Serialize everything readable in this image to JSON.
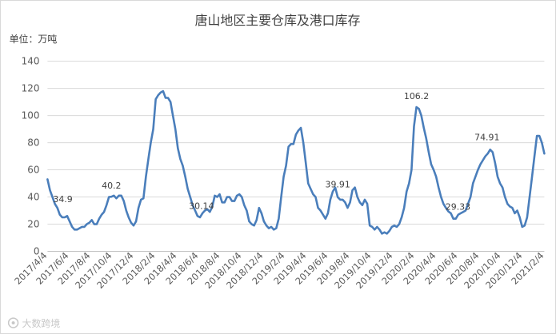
{
  "chart_data": {
    "type": "line",
    "title": "唐山地区主要仓库及港口库存",
    "ylabel": "单位：万吨",
    "ylim": [
      0,
      140
    ],
    "yticks": [
      0,
      20,
      40,
      60,
      80,
      100,
      120,
      140
    ],
    "grid": true,
    "legend": "none",
    "x_start": "2017/4/4",
    "x_end": "2021/2/4",
    "x_tick_labels": [
      "2017/4/4",
      "2017/6/4",
      "2017/8/4",
      "2017/10/4",
      "2017/12/4",
      "2018/2/4",
      "2018/4/4",
      "2018/6/4",
      "2018/8/4",
      "2018/10/4",
      "2018/12/4",
      "2019/2/4",
      "2019/4/4",
      "2019/6/4",
      "2019/8/4",
      "2019/10/4",
      "2019/12/4",
      "2020/2/4",
      "2020/4/4",
      "2020/6/4",
      "2020/8/4",
      "2020/10/4",
      "2020/12/4",
      "2021/2/4"
    ],
    "series": [
      {
        "color": "#4a7ebb",
        "points": [
          [
            "2017-04-04",
            53
          ],
          [
            "2017-04-11",
            45
          ],
          [
            "2017-04-18",
            40
          ],
          [
            "2017-04-25",
            34.9
          ],
          [
            "2017-05-02",
            32
          ],
          [
            "2017-05-09",
            27
          ],
          [
            "2017-05-16",
            25
          ],
          [
            "2017-05-23",
            25
          ],
          [
            "2017-05-30",
            26
          ],
          [
            "2017-06-06",
            22
          ],
          [
            "2017-06-13",
            18
          ],
          [
            "2017-06-20",
            16
          ],
          [
            "2017-06-27",
            16
          ],
          [
            "2017-07-04",
            17
          ],
          [
            "2017-07-11",
            18
          ],
          [
            "2017-07-18",
            18
          ],
          [
            "2017-07-25",
            20
          ],
          [
            "2017-08-01",
            21
          ],
          [
            "2017-08-08",
            23
          ],
          [
            "2017-08-15",
            20
          ],
          [
            "2017-08-22",
            20
          ],
          [
            "2017-08-29",
            24
          ],
          [
            "2017-09-05",
            27
          ],
          [
            "2017-09-12",
            29
          ],
          [
            "2017-09-19",
            34
          ],
          [
            "2017-09-26",
            40
          ],
          [
            "2017-10-03",
            40.2
          ],
          [
            "2017-10-10",
            41
          ],
          [
            "2017-10-17",
            39
          ],
          [
            "2017-10-24",
            41
          ],
          [
            "2017-10-31",
            41
          ],
          [
            "2017-11-07",
            37
          ],
          [
            "2017-11-14",
            30
          ],
          [
            "2017-11-21",
            25
          ],
          [
            "2017-11-28",
            21
          ],
          [
            "2017-12-05",
            19
          ],
          [
            "2017-12-12",
            22
          ],
          [
            "2017-12-19",
            32
          ],
          [
            "2017-12-26",
            38
          ],
          [
            "2018-01-02",
            39
          ],
          [
            "2018-01-09",
            55
          ],
          [
            "2018-01-16",
            68
          ],
          [
            "2018-01-23",
            80
          ],
          [
            "2018-01-30",
            90
          ],
          [
            "2018-02-06",
            112
          ],
          [
            "2018-02-13",
            115
          ],
          [
            "2018-02-20",
            117
          ],
          [
            "2018-02-27",
            118
          ],
          [
            "2018-03-06",
            113
          ],
          [
            "2018-03-13",
            113
          ],
          [
            "2018-03-20",
            110
          ],
          [
            "2018-03-27",
            100
          ],
          [
            "2018-04-03",
            90
          ],
          [
            "2018-04-10",
            76
          ],
          [
            "2018-04-17",
            68
          ],
          [
            "2018-04-24",
            63
          ],
          [
            "2018-05-01",
            55
          ],
          [
            "2018-05-08",
            46
          ],
          [
            "2018-05-15",
            40
          ],
          [
            "2018-05-22",
            34
          ],
          [
            "2018-05-29",
            30.14
          ],
          [
            "2018-06-05",
            26
          ],
          [
            "2018-06-12",
            25
          ],
          [
            "2018-06-19",
            28
          ],
          [
            "2018-06-26",
            30
          ],
          [
            "2018-07-03",
            31
          ],
          [
            "2018-07-10",
            29
          ],
          [
            "2018-07-17",
            33
          ],
          [
            "2018-07-24",
            41
          ],
          [
            "2018-07-31",
            40
          ],
          [
            "2018-08-07",
            42
          ],
          [
            "2018-08-14",
            36
          ],
          [
            "2018-08-21",
            36
          ],
          [
            "2018-08-28",
            40
          ],
          [
            "2018-09-04",
            40
          ],
          [
            "2018-09-11",
            37
          ],
          [
            "2018-09-18",
            37
          ],
          [
            "2018-09-25",
            41
          ],
          [
            "2018-10-02",
            42
          ],
          [
            "2018-10-09",
            40
          ],
          [
            "2018-10-16",
            34
          ],
          [
            "2018-10-23",
            30
          ],
          [
            "2018-10-30",
            22
          ],
          [
            "2018-11-06",
            20
          ],
          [
            "2018-11-13",
            19
          ],
          [
            "2018-11-20",
            23
          ],
          [
            "2018-11-27",
            32
          ],
          [
            "2018-12-04",
            28
          ],
          [
            "2018-12-11",
            22
          ],
          [
            "2018-12-18",
            19
          ],
          [
            "2018-12-25",
            17
          ],
          [
            "2019-01-01",
            18
          ],
          [
            "2019-01-08",
            16
          ],
          [
            "2019-01-15",
            17
          ],
          [
            "2019-01-22",
            24
          ],
          [
            "2019-01-29",
            40
          ],
          [
            "2019-02-05",
            55
          ],
          [
            "2019-02-12",
            63
          ],
          [
            "2019-02-19",
            77
          ],
          [
            "2019-02-26",
            79
          ],
          [
            "2019-03-05",
            79
          ],
          [
            "2019-03-12",
            86
          ],
          [
            "2019-03-19",
            89
          ],
          [
            "2019-03-26",
            91
          ],
          [
            "2019-04-02",
            80
          ],
          [
            "2019-04-09",
            65
          ],
          [
            "2019-04-16",
            50
          ],
          [
            "2019-04-23",
            46
          ],
          [
            "2019-04-30",
            42
          ],
          [
            "2019-05-07",
            40
          ],
          [
            "2019-05-14",
            32
          ],
          [
            "2019-05-21",
            30
          ],
          [
            "2019-05-28",
            27
          ],
          [
            "2019-06-04",
            24
          ],
          [
            "2019-06-11",
            28
          ],
          [
            "2019-06-18",
            38
          ],
          [
            "2019-06-25",
            44
          ],
          [
            "2019-07-02",
            47
          ],
          [
            "2019-07-09",
            39.91
          ],
          [
            "2019-07-16",
            38
          ],
          [
            "2019-07-23",
            38
          ],
          [
            "2019-07-30",
            36
          ],
          [
            "2019-08-06",
            32
          ],
          [
            "2019-08-13",
            36
          ],
          [
            "2019-08-20",
            45
          ],
          [
            "2019-08-27",
            47
          ],
          [
            "2019-09-03",
            40
          ],
          [
            "2019-09-10",
            36
          ],
          [
            "2019-09-17",
            34
          ],
          [
            "2019-09-24",
            38
          ],
          [
            "2019-10-01",
            35
          ],
          [
            "2019-10-08",
            19
          ],
          [
            "2019-10-15",
            18
          ],
          [
            "2019-10-22",
            16
          ],
          [
            "2019-10-29",
            18
          ],
          [
            "2019-11-05",
            16
          ],
          [
            "2019-11-12",
            13
          ],
          [
            "2019-11-19",
            14
          ],
          [
            "2019-11-26",
            13
          ],
          [
            "2019-12-03",
            15
          ],
          [
            "2019-12-10",
            18
          ],
          [
            "2019-12-17",
            19
          ],
          [
            "2019-12-24",
            18
          ],
          [
            "2019-12-31",
            20
          ],
          [
            "2020-01-07",
            25
          ],
          [
            "2020-01-14",
            32
          ],
          [
            "2020-01-21",
            44
          ],
          [
            "2020-01-28",
            50
          ],
          [
            "2020-02-04",
            60
          ],
          [
            "2020-02-11",
            92
          ],
          [
            "2020-02-18",
            106.2
          ],
          [
            "2020-02-25",
            105
          ],
          [
            "2020-03-03",
            100
          ],
          [
            "2020-03-10",
            91
          ],
          [
            "2020-03-17",
            83
          ],
          [
            "2020-03-24",
            73
          ],
          [
            "2020-03-31",
            64
          ],
          [
            "2020-04-07",
            60
          ],
          [
            "2020-04-14",
            55
          ],
          [
            "2020-04-21",
            47
          ],
          [
            "2020-04-28",
            40
          ],
          [
            "2020-05-05",
            35
          ],
          [
            "2020-05-12",
            32
          ],
          [
            "2020-05-19",
            29.33
          ],
          [
            "2020-05-26",
            28
          ],
          [
            "2020-06-02",
            24
          ],
          [
            "2020-06-09",
            24
          ],
          [
            "2020-06-16",
            27
          ],
          [
            "2020-06-23",
            28
          ],
          [
            "2020-06-30",
            29
          ],
          [
            "2020-07-07",
            30
          ],
          [
            "2020-07-14",
            35
          ],
          [
            "2020-07-21",
            40
          ],
          [
            "2020-07-28",
            50
          ],
          [
            "2020-08-04",
            55
          ],
          [
            "2020-08-11",
            60
          ],
          [
            "2020-08-18",
            64
          ],
          [
            "2020-08-25",
            67
          ],
          [
            "2020-09-01",
            70
          ],
          [
            "2020-09-08",
            72
          ],
          [
            "2020-09-15",
            74.91
          ],
          [
            "2020-09-22",
            73
          ],
          [
            "2020-09-29",
            65
          ],
          [
            "2020-10-06",
            55
          ],
          [
            "2020-10-13",
            50
          ],
          [
            "2020-10-20",
            47
          ],
          [
            "2020-10-27",
            40
          ],
          [
            "2020-11-03",
            35
          ],
          [
            "2020-11-10",
            33
          ],
          [
            "2020-11-17",
            32
          ],
          [
            "2020-11-24",
            28
          ],
          [
            "2020-12-01",
            30
          ],
          [
            "2020-12-08",
            25
          ],
          [
            "2020-12-15",
            18
          ],
          [
            "2020-12-22",
            19
          ],
          [
            "2020-12-29",
            25
          ],
          [
            "2021-01-05",
            40
          ],
          [
            "2021-01-12",
            55
          ],
          [
            "2021-01-19",
            70
          ],
          [
            "2021-01-26",
            85
          ],
          [
            "2021-02-02",
            85
          ],
          [
            "2021-02-09",
            80
          ],
          [
            "2021-02-16",
            72
          ]
        ]
      }
    ],
    "annotations": [
      {
        "label": "34.9",
        "x": "2017-04-25",
        "y": 34.9
      },
      {
        "label": "40.2",
        "x": "2017-10-03",
        "y": 40.2
      },
      {
        "label": "30.14",
        "x": "2018-05-29",
        "y": 30.14
      },
      {
        "label": "39.91",
        "x": "2019-07-09",
        "y": 39.91
      },
      {
        "label": "106.2",
        "x": "2020-02-18",
        "y": 106.2
      },
      {
        "label": "29.33",
        "x": "2020-05-19",
        "y": 29.33
      },
      {
        "label": "74.91",
        "x": "2020-09-15",
        "y": 74.91
      }
    ]
  },
  "watermark": "大数跨境"
}
